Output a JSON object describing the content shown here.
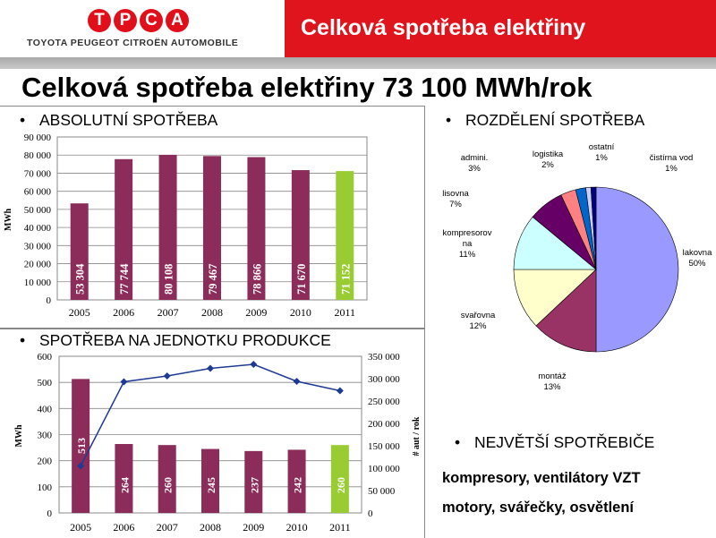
{
  "header": {
    "logo_letters": [
      "T",
      "P",
      "C",
      "A"
    ],
    "logo_subtitle": "TOYOTA PEUGEOT CITROËN AUTOMOBILE",
    "title": "Celková spotřeba elektřiny"
  },
  "main_title": "Celková spotřeba elektřiny 73 100 MWh/rok",
  "sections": {
    "absolute": "ABSOLUTNÍ SPOTŘEBA",
    "per_unit": "SPOTŘEBA NA JEDNOTKU PRODUKCE",
    "distribution": "ROZDĚLENÍ SPOTŘEBA",
    "biggest": "NEJVĚTŠÍ SPOTŘEBIČE"
  },
  "biggest_lines": [
    "kompresory, ventilátory VZT",
    "motory, svářečky, osvětlení"
  ],
  "colors": {
    "bar": "#8b2c5a",
    "bar_highlight": "#99cc33",
    "line": "#1f3a93",
    "header_red": "#e0141c"
  },
  "chart_data": [
    {
      "type": "bar",
      "categories": [
        "2005",
        "2006",
        "2007",
        "2008",
        "2009",
        "2010",
        "2011"
      ],
      "values": [
        53304,
        77744,
        80108,
        79467,
        78866,
        71670,
        71152
      ],
      "value_labels": [
        "53 304",
        "77 744",
        "80 108",
        "79 467",
        "78 866",
        "71 670",
        "71 152"
      ],
      "ylabel": "MWh",
      "ylim": [
        0,
        90000
      ],
      "y_ticks": [
        "0",
        "10 000",
        "20 000",
        "30 000",
        "40 000",
        "50 000",
        "60 000",
        "70 000",
        "80 000",
        "90 000"
      ],
      "grid": true,
      "highlight_last": true
    },
    {
      "type": "bar+line",
      "categories": [
        "2005",
        "2006",
        "2007",
        "2008",
        "2009",
        "2010",
        "2011"
      ],
      "values": [
        513,
        264,
        260,
        245,
        237,
        242,
        260
      ],
      "line_values": [
        105000,
        293000,
        306000,
        323000,
        332000,
        294000,
        273000
      ],
      "ylabel": "MWh",
      "y2label": "# aut / rok",
      "ylim": [
        0,
        600
      ],
      "y2lim": [
        0,
        350000
      ],
      "y_ticks": [
        "0",
        "100",
        "200",
        "300",
        "400",
        "500",
        "600"
      ],
      "y2_ticks": [
        "0",
        "50 000",
        "100 000",
        "150 000",
        "200 000",
        "250 000",
        "300 000",
        "350 000"
      ],
      "grid": true,
      "highlight_last": true
    },
    {
      "type": "pie",
      "labels": [
        "lakovna",
        "montáž",
        "svařovna",
        "kompresorovna",
        "lisovna",
        "admini.",
        "logistika",
        "ostatní",
        "čistírna vod"
      ],
      "display_labels": [
        [
          "lakovna",
          "50%"
        ],
        [
          "montáž",
          "13%"
        ],
        [
          "svařovna",
          "12%"
        ],
        [
          "kompresorov",
          "na",
          "11%"
        ],
        [
          "lisovna",
          "7%"
        ],
        [
          "admini.",
          "3%"
        ],
        [
          "logistika",
          "2%"
        ],
        [
          "ostatní",
          "1%"
        ],
        [
          "čistírna vod",
          "1%"
        ]
      ],
      "values": [
        50,
        13,
        12,
        11,
        7,
        3,
        2,
        1,
        1
      ],
      "colors": [
        "#9999ff",
        "#993366",
        "#ffffcc",
        "#ccffff",
        "#660066",
        "#ff8080",
        "#0066cc",
        "#ccccff",
        "#000080"
      ]
    }
  ]
}
